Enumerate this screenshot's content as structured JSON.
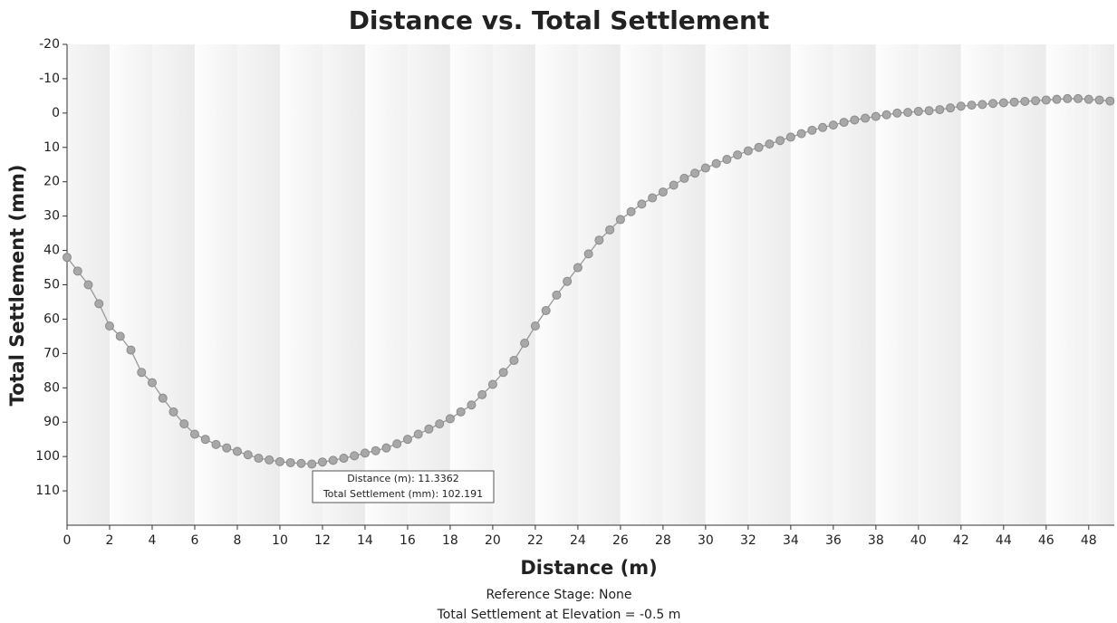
{
  "chart_data": {
    "type": "line",
    "title": "Distance vs. Total Settlement",
    "x_label": "Distance (m)",
    "y_label": "Total Settlement (mm)",
    "notes": [
      "Reference Stage: None",
      "Total Settlement at Elevation = -0.5 m"
    ],
    "tooltip": [
      "Distance (m): 11.3362",
      "Total Settlement (mm): 102.191"
    ],
    "xlim": [
      0,
      49.2
    ],
    "ylim": [
      -20,
      120
    ],
    "y_inverted": true,
    "xticks": [
      0,
      2,
      4,
      6,
      8,
      10,
      12,
      14,
      16,
      18,
      20,
      22,
      24,
      26,
      28,
      30,
      32,
      34,
      36,
      38,
      40,
      42,
      44,
      46,
      48
    ],
    "yticks": [
      -20,
      -10,
      0,
      10,
      20,
      30,
      40,
      50,
      60,
      70,
      80,
      90,
      100,
      110
    ],
    "x": [
      0,
      0.5,
      1,
      1.5,
      2,
      2.5,
      3,
      3.5,
      4,
      4.5,
      5,
      5.5,
      6,
      6.5,
      7,
      7.5,
      8,
      8.5,
      9,
      9.5,
      10,
      10.5,
      11,
      11.5,
      12,
      12.5,
      13,
      13.5,
      14,
      14.5,
      15,
      15.5,
      16,
      16.5,
      17,
      17.5,
      18,
      18.5,
      19,
      19.5,
      20,
      20.5,
      21,
      21.5,
      22,
      22.5,
      23,
      23.5,
      24,
      24.5,
      25,
      25.5,
      26,
      26.5,
      27,
      27.5,
      28,
      28.5,
      29,
      29.5,
      30,
      30.5,
      31,
      31.5,
      32,
      32.5,
      33,
      33.5,
      34,
      34.5,
      35,
      35.5,
      36,
      36.5,
      37,
      37.5,
      38,
      38.5,
      39,
      39.5,
      40,
      40.5,
      41,
      41.5,
      42,
      42.5,
      43,
      43.5,
      44,
      44.5,
      45,
      45.5,
      46,
      46.5,
      47,
      47.5,
      48,
      48.5,
      49
    ],
    "series": [
      {
        "name": "Total Settlement",
        "color": "#a8a8a8",
        "values": [
          42,
          46,
          50,
          55.5,
          62,
          65,
          69,
          75.5,
          78.5,
          83,
          87,
          90.5,
          93.5,
          95,
          96.5,
          97.5,
          98.5,
          99.5,
          100.5,
          101,
          101.5,
          101.8,
          102,
          102.2,
          101.6,
          101.1,
          100.5,
          99.8,
          99,
          98.3,
          97.5,
          96.3,
          95,
          93.5,
          92,
          90.5,
          89,
          87,
          85,
          82,
          79,
          75.5,
          72,
          67,
          62,
          57.5,
          53,
          49,
          45,
          41,
          37,
          34,
          31,
          28.7,
          26.5,
          24.7,
          23,
          21,
          19,
          17.5,
          16,
          14.7,
          13.5,
          12.2,
          11,
          10,
          9,
          8,
          7,
          6,
          5,
          4.2,
          3.5,
          2.7,
          2,
          1.5,
          1,
          0.5,
          0,
          -0.2,
          -0.5,
          -0.7,
          -1,
          -1.5,
          -2,
          -2.3,
          -2.5,
          -2.8,
          -3,
          -3.2,
          -3.4,
          -3.6,
          -3.8,
          -4,
          -4.2,
          -4.2,
          -4,
          -3.8,
          -3.5
        ]
      }
    ]
  }
}
